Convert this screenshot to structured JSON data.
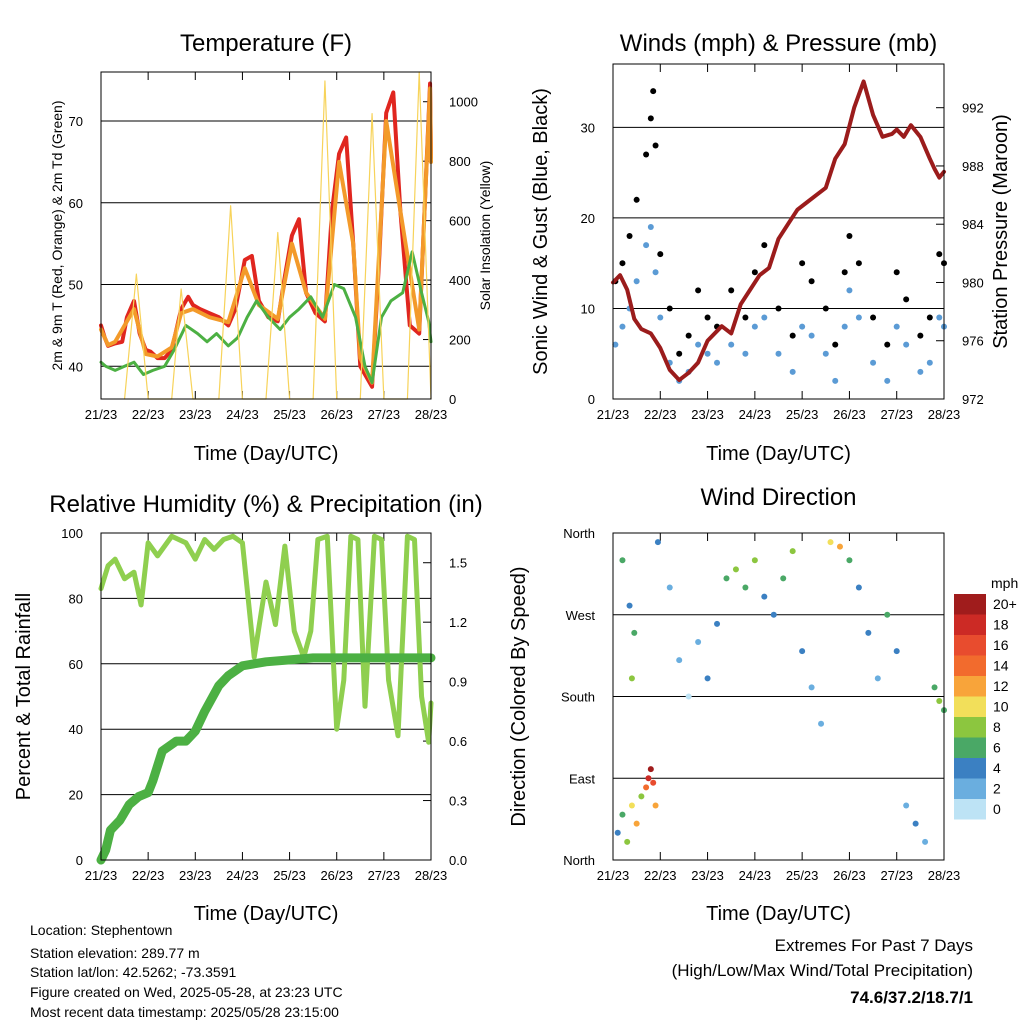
{
  "colors": {
    "temp2m": "#e0261f",
    "temp9m": "#f39a2a",
    "dewpoint": "#4cb043",
    "solar": "#f7d35a",
    "wind": "#5b9bd5",
    "gust": "#000000",
    "pressure": "#9b1c1c",
    "rh": "#8fcf4f",
    "precip": "#4cb043",
    "extremes": "#c0272d"
  },
  "footer": {
    "location": "Location: Stephentown",
    "elevation": "Station elevation: 289.77 m",
    "latlon": "Station lat/lon: 42.5262; -73.3591",
    "created": "Figure created on Wed, 2025-05-28, at 23:23 UTC",
    "recent": "Most recent data timestamp: 2025/05/28 23:15:00",
    "extremes_title": "Extremes For Past 7 Days",
    "extremes_sub": "(High/Low/Max Wind/Total Precipitation)",
    "extremes_values": "74.6/37.2/18.7/1"
  },
  "chart_data": [
    {
      "id": "temperature",
      "type": "line",
      "title": "Temperature (F)",
      "xlabel": "Time (Day/UTC)",
      "ylabel": "2m & 9m T (Red, Orange) & 2m Td (Green)",
      "y2label": "Solar Insolation (Yellow)",
      "x_ticks": [
        "21/23",
        "22/23",
        "23/23",
        "24/23",
        "25/23",
        "26/23",
        "27/23",
        "28/23"
      ],
      "ylim": [
        36,
        76
      ],
      "y_ticks": [
        40,
        50,
        60,
        70
      ],
      "y2lim": [
        0,
        1100
      ],
      "y2_ticks": [
        0,
        200,
        400,
        600,
        800,
        1000
      ],
      "grid": true,
      "series": [
        {
          "name": "2m T",
          "color_key": "temp2m",
          "axis": "left",
          "x": [
            0,
            0.08,
            0.15,
            0.3,
            0.45,
            0.55,
            0.7,
            0.82,
            0.95,
            1.05,
            1.2,
            1.35,
            1.5,
            1.7,
            1.85,
            1.95,
            2.1,
            2.3,
            2.5,
            2.7,
            2.85,
            3.05,
            3.2,
            3.35,
            3.55,
            3.75,
            3.9,
            4.05,
            4.2,
            4.35,
            4.55,
            4.75,
            4.9,
            5.05,
            5.2,
            5.35,
            5.5,
            5.75,
            5.9,
            6.05,
            6.2,
            6.35,
            6.55,
            6.75,
            6.9,
            6.98,
            7.0
          ],
          "values": [
            45,
            43.5,
            42.5,
            42.8,
            43,
            46,
            48,
            44,
            42,
            41.8,
            41,
            41,
            42,
            47,
            48.5,
            47.5,
            47,
            46.5,
            46,
            45,
            47,
            53,
            53.5,
            48,
            46,
            45.5,
            51,
            56,
            58,
            49,
            46.5,
            45.5,
            59,
            66,
            68,
            55,
            40,
            37.5,
            53,
            71,
            73.5,
            59,
            45,
            44,
            64,
            74.6,
            65.5
          ]
        },
        {
          "name": "9m T",
          "color_key": "temp9m",
          "axis": "left",
          "x": [
            0,
            0.15,
            0.3,
            0.55,
            0.7,
            0.95,
            1.2,
            1.5,
            1.7,
            1.95,
            2.3,
            2.7,
            3.05,
            3.35,
            3.75,
            4.05,
            4.35,
            4.75,
            5.05,
            5.35,
            5.5,
            5.75,
            6.05,
            6.35,
            6.75,
            6.98,
            7.0
          ],
          "values": [
            44.5,
            42.6,
            43,
            45.5,
            47,
            41.5,
            41.2,
            42.3,
            46.5,
            47,
            46,
            45.4,
            52,
            47.5,
            45.8,
            55,
            49,
            45.8,
            65,
            55,
            41,
            38,
            70,
            59,
            44.5,
            74,
            65
          ]
        },
        {
          "name": "2m Td",
          "color_key": "dewpoint",
          "axis": "left",
          "x": [
            0,
            0.1,
            0.3,
            0.5,
            0.7,
            0.9,
            1.1,
            1.35,
            1.55,
            1.8,
            2.05,
            2.25,
            2.45,
            2.7,
            2.9,
            3.1,
            3.3,
            3.55,
            3.8,
            4.0,
            4.2,
            4.45,
            4.7,
            4.95,
            5.15,
            5.4,
            5.6,
            5.75,
            5.95,
            6.15,
            6.4,
            6.6,
            6.8,
            6.95,
            7.0
          ],
          "values": [
            40.5,
            40,
            39.5,
            40,
            40.5,
            39,
            39.5,
            40,
            42,
            45,
            44,
            43,
            44,
            42.5,
            43.5,
            46,
            48,
            46,
            44.5,
            46,
            47,
            48.5,
            46,
            50,
            49.5,
            46,
            40,
            38,
            46,
            48,
            49,
            54,
            49,
            45.5,
            43
          ]
        },
        {
          "name": "Solar Insolation",
          "color_key": "solar",
          "axis": "right",
          "x": [
            0.5,
            0.75,
            1.0,
            1.5,
            1.7,
            1.95,
            2.5,
            2.75,
            3.0,
            3.5,
            3.75,
            4.0,
            4.5,
            4.75,
            5.0,
            5.5,
            5.75,
            6.0,
            6.5,
            6.75,
            7.0
          ],
          "values": [
            0,
            420,
            0,
            0,
            370,
            0,
            0,
            650,
            0,
            0,
            560,
            0,
            0,
            1070,
            0,
            0,
            960,
            0,
            0,
            1100,
            0
          ]
        }
      ]
    },
    {
      "id": "winds",
      "type": "scatter",
      "title": "Winds (mph) & Pressure (mb)",
      "xlabel": "Time (Day/UTC)",
      "ylabel": "Sonic Wind & Gust (Blue, Black)",
      "y2label": "Station Pressure (Maroon)",
      "x_ticks": [
        "21/23",
        "22/23",
        "23/23",
        "24/23",
        "25/23",
        "26/23",
        "27/23",
        "28/23"
      ],
      "ylim": [
        0,
        37
      ],
      "y_ticks": [
        0,
        10,
        20,
        30
      ],
      "y2lim": [
        972,
        995
      ],
      "y2_ticks": [
        972,
        976,
        980,
        984,
        988,
        992
      ],
      "grid": true,
      "series": [
        {
          "name": "Gust",
          "color_key": "gust",
          "type": "scatter",
          "x": [
            0.05,
            0.2,
            0.35,
            0.5,
            0.7,
            0.8,
            0.85,
            0.9,
            1.0,
            1.2,
            1.4,
            1.6,
            1.8,
            2.0,
            2.2,
            2.5,
            2.8,
            3.0,
            3.2,
            3.5,
            3.8,
            4.0,
            4.2,
            4.5,
            4.7,
            4.9,
            5.0,
            5.2,
            5.5,
            5.8,
            6.0,
            6.2,
            6.5,
            6.7,
            6.9,
            7.0
          ],
          "values": [
            13,
            15,
            18,
            22,
            27,
            31,
            34,
            28,
            16,
            10,
            5,
            7,
            12,
            9,
            8,
            12,
            9,
            14,
            17,
            10,
            7,
            15,
            13,
            10,
            6,
            14,
            18,
            15,
            9,
            6,
            14,
            11,
            7,
            9,
            16,
            15
          ]
        },
        {
          "name": "Sonic Wind",
          "color_key": "wind",
          "type": "scatter",
          "x": [
            0.05,
            0.2,
            0.35,
            0.5,
            0.7,
            0.8,
            0.9,
            1.0,
            1.2,
            1.4,
            1.6,
            1.8,
            2.0,
            2.2,
            2.5,
            2.8,
            3.0,
            3.2,
            3.5,
            3.8,
            4.0,
            4.2,
            4.5,
            4.7,
            4.9,
            5.0,
            5.2,
            5.5,
            5.8,
            6.0,
            6.2,
            6.5,
            6.7,
            6.9,
            7.0
          ],
          "values": [
            6,
            8,
            10,
            13,
            17,
            19,
            14,
            9,
            4,
            2,
            3,
            6,
            5,
            4,
            6,
            5,
            8,
            9,
            5,
            3,
            8,
            7,
            5,
            2,
            8,
            12,
            9,
            4,
            2,
            8,
            6,
            3,
            4,
            9,
            8
          ]
        },
        {
          "name": "Pressure",
          "color_key": "pressure",
          "type": "line",
          "axis": "right",
          "x": [
            0,
            0.15,
            0.3,
            0.45,
            0.6,
            0.8,
            1.0,
            1.2,
            1.4,
            1.6,
            1.8,
            2.0,
            2.3,
            2.5,
            2.7,
            2.9,
            3.1,
            3.3,
            3.5,
            3.7,
            3.9,
            4.1,
            4.3,
            4.5,
            4.7,
            4.9,
            5.1,
            5.3,
            5.5,
            5.7,
            5.9,
            6.0,
            6.15,
            6.3,
            6.5,
            6.7,
            6.8,
            6.9,
            7.0
          ],
          "values": [
            980,
            980.5,
            979.5,
            977.5,
            976.8,
            976.5,
            975.5,
            974,
            973.3,
            973.8,
            974.5,
            976,
            977,
            976.5,
            978.5,
            979.5,
            980.5,
            981,
            983,
            984,
            985,
            985.5,
            986,
            986.5,
            988.5,
            989.5,
            992,
            993.8,
            991.5,
            990,
            990.2,
            990.5,
            990,
            990.8,
            990,
            988.5,
            987.8,
            987.2,
            987.6
          ]
        }
      ]
    },
    {
      "id": "humidity",
      "type": "line",
      "title": "Relative Humidity (%) & Precipitation (in)",
      "xlabel": "Time (Day/UTC)",
      "ylabel": "Percent & Total Rainfall",
      "x_ticks": [
        "21/23",
        "22/23",
        "23/23",
        "24/23",
        "25/23",
        "26/23",
        "27/23",
        "28/23"
      ],
      "ylim": [
        0,
        100
      ],
      "y_ticks": [
        0,
        20,
        40,
        60,
        80,
        100
      ],
      "y2lim": [
        0,
        1.65
      ],
      "y2_ticks": [
        "0.0",
        "0.3",
        "0.6",
        "0.9",
        "1.2",
        "1.5"
      ],
      "grid": true,
      "series": [
        {
          "name": "RH",
          "color_key": "rh",
          "axis": "left",
          "x": [
            0,
            0.15,
            0.3,
            0.5,
            0.7,
            0.85,
            1.0,
            1.2,
            1.5,
            1.8,
            2.0,
            2.2,
            2.4,
            2.6,
            2.8,
            3.0,
            3.25,
            3.5,
            3.7,
            3.9,
            4.1,
            4.3,
            4.45,
            4.6,
            4.8,
            5.0,
            5.15,
            5.3,
            5.45,
            5.6,
            5.8,
            5.95,
            6.1,
            6.3,
            6.5,
            6.65,
            6.8,
            6.95,
            7.0
          ],
          "values": [
            83,
            90,
            92,
            86,
            88,
            78,
            97,
            93,
            99,
            97,
            92,
            98,
            95,
            98,
            99,
            97,
            62,
            85,
            72,
            96,
            70,
            62,
            70,
            98,
            99,
            40,
            55,
            99,
            98,
            47,
            99,
            98,
            55,
            38,
            99,
            98,
            50,
            36,
            48
          ]
        },
        {
          "name": "Total Precipitation",
          "color_key": "precip",
          "axis": "right",
          "x": [
            0,
            0.1,
            0.2,
            0.4,
            0.6,
            0.8,
            1.0,
            1.1,
            1.3,
            1.6,
            1.8,
            2.0,
            2.2,
            2.5,
            2.7,
            3.0,
            3.5,
            4.0,
            4.5,
            5.0,
            5.5,
            6.0,
            6.5,
            7.0
          ],
          "values": [
            0,
            0.05,
            0.15,
            0.2,
            0.28,
            0.32,
            0.34,
            0.4,
            0.55,
            0.6,
            0.6,
            0.65,
            0.75,
            0.88,
            0.93,
            0.98,
            1.0,
            1.01,
            1.02,
            1.02,
            1.02,
            1.02,
            1.02,
            1.02
          ]
        }
      ]
    },
    {
      "id": "wind_direction",
      "type": "scatter",
      "title": "Wind Direction",
      "xlabel": "Time (Day/UTC)",
      "ylabel": "Direction (Colored By Speed)",
      "x_ticks": [
        "21/23",
        "22/23",
        "23/23",
        "24/23",
        "25/23",
        "26/23",
        "27/23",
        "28/23"
      ],
      "y_ticks": [
        "North",
        "East",
        "South",
        "West",
        "North"
      ],
      "ylim": [
        0,
        360
      ],
      "grid": true,
      "legend": {
        "title": "mph",
        "labels": [
          "20+",
          "18",
          "16",
          "14",
          "12",
          "10",
          "8",
          "6",
          "4",
          "2",
          "0"
        ],
        "colors": [
          "#a01c1c",
          "#cc2a25",
          "#e84c2e",
          "#f26b2d",
          "#f8a43a",
          "#f2df5a",
          "#8cc63f",
          "#4aa866",
          "#3b80c2",
          "#6aaedf",
          "#bde3f5"
        ]
      },
      "points": [
        {
          "x": 0.1,
          "dir": 30,
          "speed": 4
        },
        {
          "x": 0.2,
          "dir": 50,
          "speed": 6
        },
        {
          "x": 0.3,
          "dir": 20,
          "speed": 8
        },
        {
          "x": 0.4,
          "dir": 60,
          "speed": 10
        },
        {
          "x": 0.5,
          "dir": 40,
          "speed": 12
        },
        {
          "x": 0.6,
          "dir": 70,
          "speed": 8
        },
        {
          "x": 0.7,
          "dir": 80,
          "speed": 14
        },
        {
          "x": 0.75,
          "dir": 90,
          "speed": 18
        },
        {
          "x": 0.8,
          "dir": 100,
          "speed": 20
        },
        {
          "x": 0.85,
          "dir": 85,
          "speed": 16
        },
        {
          "x": 0.9,
          "dir": 60,
          "speed": 12
        },
        {
          "x": 0.95,
          "dir": 350,
          "speed": 4
        },
        {
          "x": 0.2,
          "dir": 330,
          "speed": 6
        },
        {
          "x": 0.35,
          "dir": 280,
          "speed": 4
        },
        {
          "x": 0.4,
          "dir": 200,
          "speed": 8
        },
        {
          "x": 0.45,
          "dir": 250,
          "speed": 6
        },
        {
          "x": 1.2,
          "dir": 300,
          "speed": 2
        },
        {
          "x": 1.4,
          "dir": 220,
          "speed": 2
        },
        {
          "x": 1.6,
          "dir": 180,
          "speed": 0
        },
        {
          "x": 1.8,
          "dir": 240,
          "speed": 2
        },
        {
          "x": 2.0,
          "dir": 200,
          "speed": 4
        },
        {
          "x": 2.2,
          "dir": 260,
          "speed": 4
        },
        {
          "x": 2.4,
          "dir": 310,
          "speed": 6
        },
        {
          "x": 2.6,
          "dir": 320,
          "speed": 8
        },
        {
          "x": 2.8,
          "dir": 300,
          "speed": 6
        },
        {
          "x": 3.0,
          "dir": 330,
          "speed": 8
        },
        {
          "x": 3.2,
          "dir": 290,
          "speed": 4
        },
        {
          "x": 3.4,
          "dir": 270,
          "speed": 4
        },
        {
          "x": 3.6,
          "dir": 310,
          "speed": 6
        },
        {
          "x": 3.8,
          "dir": 340,
          "speed": 8
        },
        {
          "x": 4.0,
          "dir": 230,
          "speed": 4
        },
        {
          "x": 4.2,
          "dir": 190,
          "speed": 2
        },
        {
          "x": 4.4,
          "dir": 150,
          "speed": 2
        },
        {
          "x": 4.6,
          "dir": 350,
          "speed": 10
        },
        {
          "x": 4.8,
          "dir": 345,
          "speed": 12
        },
        {
          "x": 5.0,
          "dir": 330,
          "speed": 6
        },
        {
          "x": 5.2,
          "dir": 300,
          "speed": 4
        },
        {
          "x": 5.4,
          "dir": 250,
          "speed": 4
        },
        {
          "x": 5.6,
          "dir": 200,
          "speed": 2
        },
        {
          "x": 5.8,
          "dir": 270,
          "speed": 6
        },
        {
          "x": 6.0,
          "dir": 230,
          "speed": 4
        },
        {
          "x": 6.2,
          "dir": 60,
          "speed": 2
        },
        {
          "x": 6.4,
          "dir": 40,
          "speed": 4
        },
        {
          "x": 6.6,
          "dir": 20,
          "speed": 2
        },
        {
          "x": 6.8,
          "dir": 190,
          "speed": 6
        },
        {
          "x": 6.9,
          "dir": 175,
          "speed": 8
        },
        {
          "x": 7.0,
          "dir": 165,
          "speed": 6
        }
      ]
    }
  ]
}
